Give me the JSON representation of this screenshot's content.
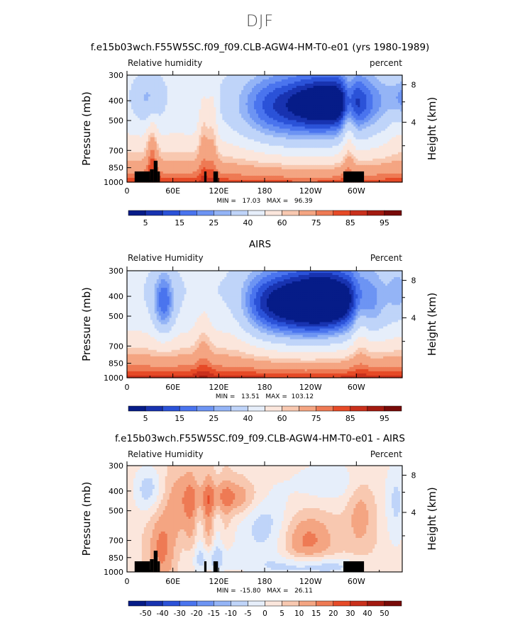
{
  "suptitle": "DJF",
  "panels": [
    {
      "title": "f.e15b03wch.F55W5SC.f09_f09.CLB-AGW4-HM-T0-e01 (yrs 1980-1989)",
      "left_label": "Relative humidity",
      "right_label": "percent",
      "minmax": "MIN =   17.03   MAX =   96.39"
    },
    {
      "title": "AIRS",
      "left_label": "Relative Humidity",
      "right_label": "Percent",
      "minmax": "MIN =   13.51   MAX =  103.12"
    },
    {
      "title": "f.e15b03wch.F55W5SC.f09_f09.CLB-AGW4-HM-T0-e01 - AIRS",
      "left_label": "Relative Humidity",
      "right_label": "Percent",
      "minmax": "MIN =  -15.80   MAX =   26.11"
    }
  ],
  "chart_data": [
    {
      "type": "heatmap",
      "title": "f.e15b03wch.F55W5SC.f09_f09.CLB-AGW4-HM-T0-e01 (yrs 1980-1989)",
      "xlabel": "",
      "ylabel": "Pressure (mb)",
      "y2label": "Height (km)",
      "x_ticks": [
        "0",
        "60E",
        "120E",
        "180",
        "120W",
        "60W"
      ],
      "y_ticks": [
        "300",
        "400",
        "500",
        "700",
        "850",
        "1000"
      ],
      "y2_ticks": [
        "8",
        "4"
      ],
      "ylim": [
        1000,
        300
      ],
      "min": 17.03,
      "max": 96.39,
      "colorbar_labels": [
        "5",
        "15",
        "25",
        "40",
        "60",
        "75",
        "85",
        "95"
      ]
    },
    {
      "type": "heatmap",
      "title": "AIRS",
      "ylabel": "Pressure (mb)",
      "y2label": "Height (km)",
      "x_ticks": [
        "0",
        "60E",
        "120E",
        "180",
        "120W",
        "60W"
      ],
      "y_ticks": [
        "300",
        "400",
        "500",
        "700",
        "850",
        "1000"
      ],
      "y2_ticks": [
        "8",
        "4"
      ],
      "ylim": [
        1000,
        300
      ],
      "min": 13.51,
      "max": 103.12,
      "colorbar_labels": [
        "5",
        "15",
        "25",
        "40",
        "60",
        "75",
        "85",
        "95"
      ]
    },
    {
      "type": "heatmap",
      "title": "f.e15b03wch.F55W5SC.f09_f09.CLB-AGW4-HM-T0-e01 - AIRS",
      "ylabel": "Pressure (mb)",
      "y2label": "Height (km)",
      "x_ticks": [
        "0",
        "60E",
        "120E",
        "180",
        "120W",
        "60W"
      ],
      "y_ticks": [
        "300",
        "400",
        "500",
        "700",
        "850",
        "1000"
      ],
      "y2_ticks": [
        "8",
        "4"
      ],
      "ylim": [
        1000,
        300
      ],
      "min": -15.8,
      "max": 26.11,
      "colorbar_labels": [
        "-50",
        "-40",
        "-30",
        "-20",
        "-15",
        "-10",
        "-5",
        "0",
        "5",
        "10",
        "15",
        "20",
        "30",
        "40",
        "50"
      ]
    }
  ],
  "colors": {
    "palette": [
      "#061c88",
      "#1833b0",
      "#2b52d8",
      "#4a74ee",
      "#6d94f3",
      "#94b4f6",
      "#bfd4f9",
      "#e6eefa",
      "#fbe6dc",
      "#f8c8b0",
      "#f4a582",
      "#ee7a54",
      "#e64a27",
      "#c9301c",
      "#a31a10",
      "#780a08"
    ]
  }
}
